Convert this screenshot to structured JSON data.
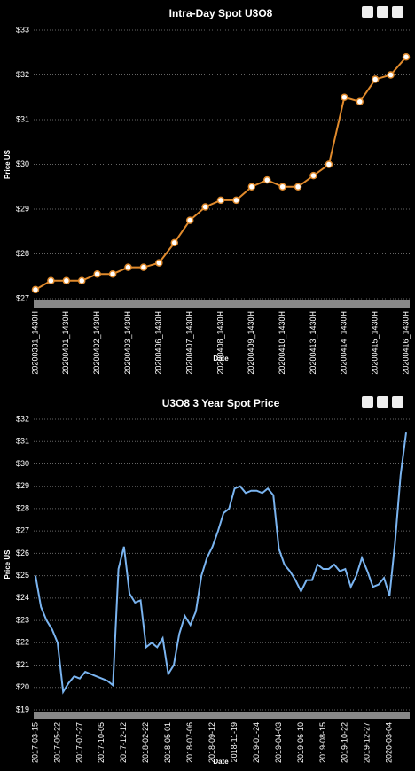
{
  "chart_data": [
    {
      "type": "line",
      "title": "Intra-Day Spot U3O8",
      "ylabel": "Price US",
      "xlabel": "Date",
      "categories": [
        "20200331_1430H",
        null,
        "20200401_1430H",
        null,
        "20200402_1430H",
        null,
        "20200403_1430H",
        null,
        "20200406_1430H",
        null,
        "20200407_1430H",
        null,
        "20200408_1430H",
        null,
        "20200409_1430H",
        null,
        "20200410_1430H",
        null,
        "20200413_1430H",
        null,
        "20200414_1430H",
        null,
        "20200415_1430H",
        null,
        "20200416_1430H"
      ],
      "series": [
        {
          "color": "#e08a2c",
          "values": [
            27.2,
            27.4,
            27.4,
            27.4,
            27.55,
            27.55,
            27.7,
            27.7,
            27.8,
            28.25,
            28.75,
            29.05,
            29.2,
            29.2,
            29.5,
            29.65,
            29.5,
            29.5,
            29.75,
            30.0,
            31.5,
            31.4,
            31.9,
            32.0,
            32.4
          ]
        }
      ],
      "markers": true,
      "grid": true,
      "ylim": [
        27,
        33
      ],
      "yticks": [
        {
          "value": 27,
          "label": "$27"
        },
        {
          "value": 28,
          "label": "$28"
        },
        {
          "value": 29,
          "label": "$29"
        },
        {
          "value": 30,
          "label": "$30"
        },
        {
          "value": 31,
          "label": "$31"
        },
        {
          "value": 32,
          "label": "$32"
        },
        {
          "value": 33,
          "label": "$33"
        }
      ]
    },
    {
      "type": "line",
      "title": "U3O8 3 Year Spot Price",
      "ylabel": "Price US",
      "xlabel": "Date",
      "categories": [
        "2017-03-15",
        null,
        null,
        null,
        "2017-05-22",
        null,
        null,
        null,
        "2017-07-27",
        null,
        null,
        null,
        "2017-10-05",
        null,
        null,
        null,
        "2017-12-12",
        null,
        null,
        null,
        "2018-02-22",
        null,
        null,
        null,
        "2018-05-01",
        null,
        null,
        null,
        "2018-07-06",
        null,
        null,
        null,
        "2018-09-12",
        null,
        null,
        null,
        "2018-11-19",
        null,
        null,
        null,
        "2019-01-24",
        null,
        null,
        null,
        "2019-04-03",
        null,
        null,
        null,
        "2019-06-10",
        null,
        null,
        null,
        "2019-08-15",
        null,
        null,
        null,
        "2019-10-22",
        null,
        null,
        null,
        "2019-12-27",
        null,
        null,
        null,
        "2020-03-04",
        null,
        null,
        null
      ],
      "series": [
        {
          "color": "#7ab4f0",
          "values": [
            25.0,
            23.6,
            23.0,
            22.6,
            22.0,
            19.8,
            20.2,
            20.5,
            20.4,
            20.7,
            20.6,
            20.5,
            20.4,
            20.3,
            20.1,
            25.3,
            26.3,
            24.2,
            23.8,
            23.9,
            21.8,
            22.0,
            21.8,
            22.2,
            20.6,
            21.0,
            22.4,
            23.2,
            22.8,
            23.4,
            25.0,
            25.8,
            26.3,
            27.0,
            27.8,
            28.0,
            28.9,
            29.0,
            28.7,
            28.8,
            28.8,
            28.7,
            28.9,
            28.6,
            26.2,
            25.5,
            25.2,
            24.8,
            24.3,
            24.8,
            24.8,
            25.5,
            25.3,
            25.3,
            25.5,
            25.2,
            25.3,
            24.5,
            25.0,
            25.8,
            25.2,
            24.5,
            24.6,
            24.9,
            24.1,
            26.5,
            29.5,
            31.4
          ]
        }
      ],
      "markers": false,
      "grid": true,
      "ylim": [
        19,
        32
      ],
      "yticks": [
        {
          "value": 19,
          "label": "$19"
        },
        {
          "value": 20,
          "label": "$20"
        },
        {
          "value": 21,
          "label": "$21"
        },
        {
          "value": 22,
          "label": "$22"
        },
        {
          "value": 23,
          "label": "$23"
        },
        {
          "value": 24,
          "label": "$24"
        },
        {
          "value": 25,
          "label": "$25"
        },
        {
          "value": 26,
          "label": "$26"
        },
        {
          "value": 27,
          "label": "$27"
        },
        {
          "value": 28,
          "label": "$28"
        },
        {
          "value": 29,
          "label": "$29"
        },
        {
          "value": 30,
          "label": "$30"
        },
        {
          "value": 31,
          "label": "$31"
        },
        {
          "value": 32,
          "label": "$32"
        }
      ]
    }
  ]
}
